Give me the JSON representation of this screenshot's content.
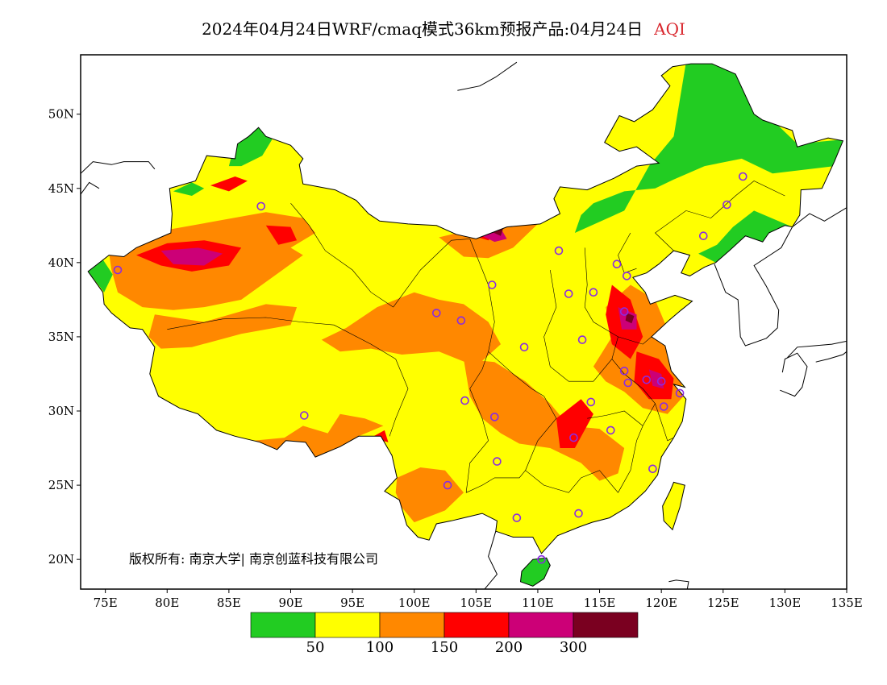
{
  "title": {
    "text": "2024年04月24日WRF/cmaq模式36km预报产品:04月24日",
    "variable": "AQI",
    "variable_color": "#d9272e"
  },
  "map": {
    "lon_range": [
      73,
      135
    ],
    "lat_range": [
      18,
      54
    ],
    "x_ticks": [
      "75E",
      "80E",
      "85E",
      "90E",
      "95E",
      "100E",
      "105E",
      "110E",
      "115E",
      "120E",
      "125E",
      "130E",
      "135E"
    ],
    "x_tick_values": [
      75,
      80,
      85,
      90,
      95,
      100,
      105,
      110,
      115,
      120,
      125,
      130,
      135
    ],
    "y_ticks": [
      "20N",
      "25N",
      "30N",
      "35N",
      "40N",
      "45N",
      "50N"
    ],
    "y_tick_values": [
      20,
      25,
      30,
      35,
      40,
      45,
      50
    ],
    "copyright": "版权所有: 南京大学| 南京创蓝科技有限公司"
  },
  "legend": {
    "colors": [
      "#22cc22",
      "#ffff00",
      "#ff8800",
      "#ff0000",
      "#cc0077",
      "#7a0020"
    ],
    "labels": [
      "50",
      "100",
      "150",
      "200",
      "300"
    ]
  },
  "colors": {
    "good": "#22cc22",
    "moderate": "#ffff00",
    "sensitive": "#ff8800",
    "unhealthy": "#ff0000",
    "very_unhealthy": "#cc0077",
    "hazardous": "#7a0020",
    "city_marker": "#8a2be2"
  },
  "cities": [
    {
      "lon": 126.6,
      "lat": 45.8
    },
    {
      "lon": 125.3,
      "lat": 43.9
    },
    {
      "lon": 123.4,
      "lat": 41.8
    },
    {
      "lon": 116.4,
      "lat": 39.9
    },
    {
      "lon": 117.2,
      "lat": 39.1
    },
    {
      "lon": 114.5,
      "lat": 38.0
    },
    {
      "lon": 112.5,
      "lat": 37.9
    },
    {
      "lon": 111.7,
      "lat": 40.8
    },
    {
      "lon": 106.3,
      "lat": 38.5
    },
    {
      "lon": 103.8,
      "lat": 36.1
    },
    {
      "lon": 101.8,
      "lat": 36.6
    },
    {
      "lon": 108.9,
      "lat": 34.3
    },
    {
      "lon": 113.6,
      "lat": 34.8
    },
    {
      "lon": 117.0,
      "lat": 36.7
    },
    {
      "lon": 118.8,
      "lat": 32.1
    },
    {
      "lon": 117.3,
      "lat": 31.9
    },
    {
      "lon": 120.2,
      "lat": 30.3
    },
    {
      "lon": 121.5,
      "lat": 31.2
    },
    {
      "lon": 114.3,
      "lat": 30.6
    },
    {
      "lon": 112.9,
      "lat": 28.2
    },
    {
      "lon": 115.9,
      "lat": 28.7
    },
    {
      "lon": 119.3,
      "lat": 26.1
    },
    {
      "lon": 113.3,
      "lat": 23.1
    },
    {
      "lon": 108.3,
      "lat": 22.8
    },
    {
      "lon": 110.3,
      "lat": 20.0
    },
    {
      "lon": 106.7,
      "lat": 26.6
    },
    {
      "lon": 102.7,
      "lat": 25.0
    },
    {
      "lon": 104.1,
      "lat": 30.7
    },
    {
      "lon": 106.5,
      "lat": 29.6
    },
    {
      "lon": 91.1,
      "lat": 29.7
    },
    {
      "lon": 87.6,
      "lat": 43.8
    },
    {
      "lon": 76.0,
      "lat": 39.5
    },
    {
      "lon": 117.0,
      "lat": 32.7
    },
    {
      "lon": 120.0,
      "lat": 32.0
    }
  ]
}
